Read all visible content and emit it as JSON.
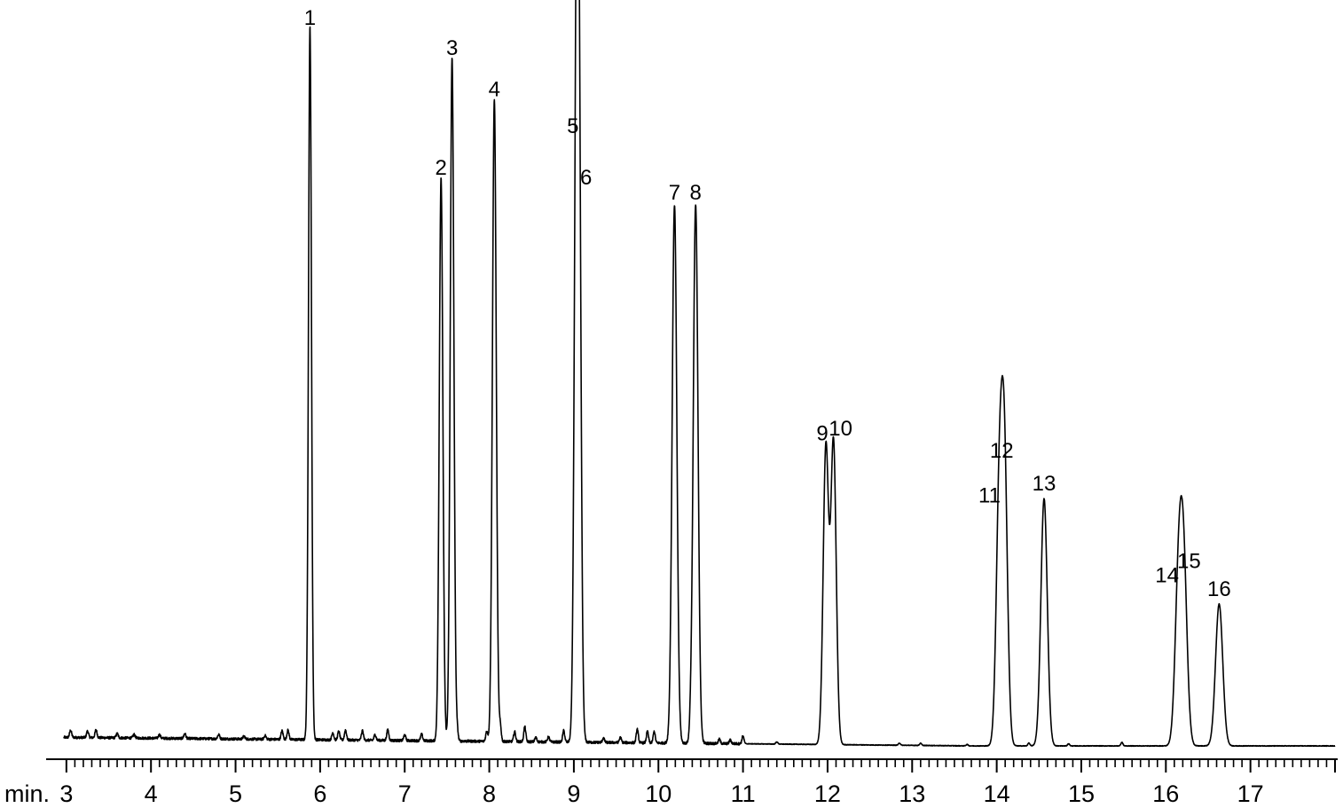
{
  "chart_data": {
    "type": "line",
    "title": "",
    "xlabel": "min.",
    "ylabel": "",
    "xlim": [
      2.97,
      18.0
    ],
    "ylim": [
      0,
      100
    ],
    "grid": false,
    "x_ticks": [
      3,
      4,
      5,
      6,
      7,
      8,
      9,
      10,
      11,
      12,
      13,
      14,
      15,
      16,
      17
    ],
    "minor_tick_step": 0.1,
    "baseline": {
      "start": 1.2,
      "end": 0.0
    },
    "peaks": [
      {
        "label": "1",
        "x": 5.88,
        "y": 100.0
      },
      {
        "label": "2",
        "x": 7.43,
        "y": 79.0
      },
      {
        "label": "3",
        "x": 7.56,
        "y": 95.8
      },
      {
        "label": "4",
        "x": 8.06,
        "y": 90.0
      },
      {
        "label": "5",
        "x": 9.03,
        "y": 84.8
      },
      {
        "label": "6",
        "x": 9.06,
        "y": 77.6
      },
      {
        "label": "7",
        "x": 10.19,
        "y": 75.5
      },
      {
        "label": "8",
        "x": 10.44,
        "y": 75.5
      },
      {
        "label": "9",
        "x": 11.98,
        "y": 41.7
      },
      {
        "label": "10",
        "x": 12.07,
        "y": 42.4
      },
      {
        "label": "11",
        "x": 14.03,
        "y": 33.0
      },
      {
        "label": "12",
        "x": 14.09,
        "y": 39.3
      },
      {
        "label": "13",
        "x": 14.56,
        "y": 34.7
      },
      {
        "label": "14",
        "x": 16.15,
        "y": 21.8
      },
      {
        "label": "15",
        "x": 16.21,
        "y": 23.8
      },
      {
        "label": "16",
        "x": 16.63,
        "y": 19.9
      }
    ],
    "minor_peaks": [
      [
        3.05,
        1.0
      ],
      [
        3.25,
        0.9
      ],
      [
        3.35,
        1.1
      ],
      [
        3.6,
        0.6
      ],
      [
        3.8,
        0.5
      ],
      [
        4.1,
        0.5
      ],
      [
        4.4,
        0.7
      ],
      [
        4.8,
        0.6
      ],
      [
        5.1,
        0.4
      ],
      [
        5.35,
        0.5
      ],
      [
        5.55,
        1.2
      ],
      [
        5.62,
        1.3
      ],
      [
        6.15,
        1.0
      ],
      [
        6.22,
        1.2
      ],
      [
        6.3,
        1.4
      ],
      [
        6.5,
        1.3
      ],
      [
        6.65,
        0.8
      ],
      [
        6.8,
        1.5
      ],
      [
        7.0,
        0.8
      ],
      [
        7.2,
        0.9
      ],
      [
        7.62,
        1.3
      ],
      [
        7.97,
        1.4
      ],
      [
        8.13,
        2.1
      ],
      [
        8.3,
        1.4
      ],
      [
        8.42,
        2.1
      ],
      [
        8.55,
        0.6
      ],
      [
        8.7,
        0.7
      ],
      [
        8.88,
        1.6
      ],
      [
        9.35,
        0.6
      ],
      [
        9.55,
        0.7
      ],
      [
        9.75,
        1.9
      ],
      [
        9.87,
        1.6
      ],
      [
        9.95,
        1.6
      ],
      [
        10.38,
        1.4
      ],
      [
        10.72,
        0.6
      ],
      [
        10.85,
        0.5
      ],
      [
        11.0,
        1.1
      ],
      [
        11.4,
        0.3
      ],
      [
        12.85,
        0.3
      ],
      [
        13.1,
        0.3
      ],
      [
        13.65,
        0.2
      ],
      [
        14.38,
        0.4
      ],
      [
        14.85,
        0.3
      ],
      [
        15.48,
        0.5
      ]
    ]
  }
}
